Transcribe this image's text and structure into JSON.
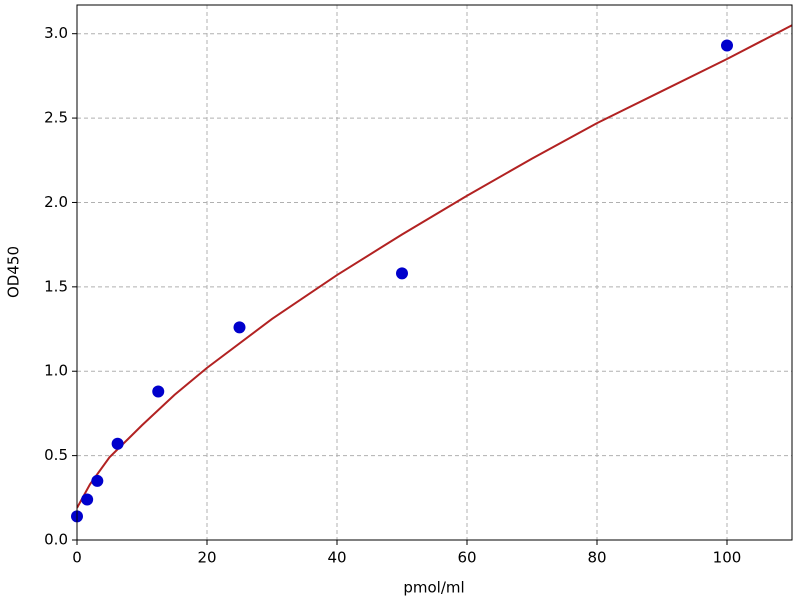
{
  "chart_data": {
    "type": "scatter",
    "xlabel": "pmol/ml",
    "ylabel": "OD450",
    "xlim": [
      0,
      110
    ],
    "ylim": [
      0,
      3.17
    ],
    "xticks": [
      0,
      20,
      40,
      60,
      80,
      100
    ],
    "yticks": [
      {
        "value": 0,
        "label": "0.0"
      },
      {
        "value": 0.5,
        "label": "0.5"
      },
      {
        "value": 1,
        "label": "1.0"
      },
      {
        "value": 1.5,
        "label": "1.5"
      },
      {
        "value": 2,
        "label": "2.0"
      },
      {
        "value": 2.5,
        "label": "2.5"
      },
      {
        "value": 3,
        "label": "3.0"
      }
    ],
    "grid": true,
    "series": [
      {
        "type": "scatter",
        "color": "#0000cc",
        "x": [
          0,
          1.5625,
          3.125,
          6.25,
          12.5,
          25,
          50,
          100
        ],
        "values": [
          0.14,
          0.24,
          0.35,
          0.57,
          0.88,
          1.26,
          1.58,
          2.93
        ]
      },
      {
        "type": "line",
        "color": "#b22222",
        "x": [
          0,
          2,
          5,
          10,
          15,
          20,
          30,
          40,
          50,
          60,
          70,
          80,
          90,
          100,
          110
        ],
        "values": [
          0.19,
          0.33,
          0.49,
          0.68,
          0.86,
          1.02,
          1.31,
          1.57,
          1.81,
          2.04,
          2.26,
          2.47,
          2.66,
          2.85,
          3.05
        ]
      }
    ]
  }
}
